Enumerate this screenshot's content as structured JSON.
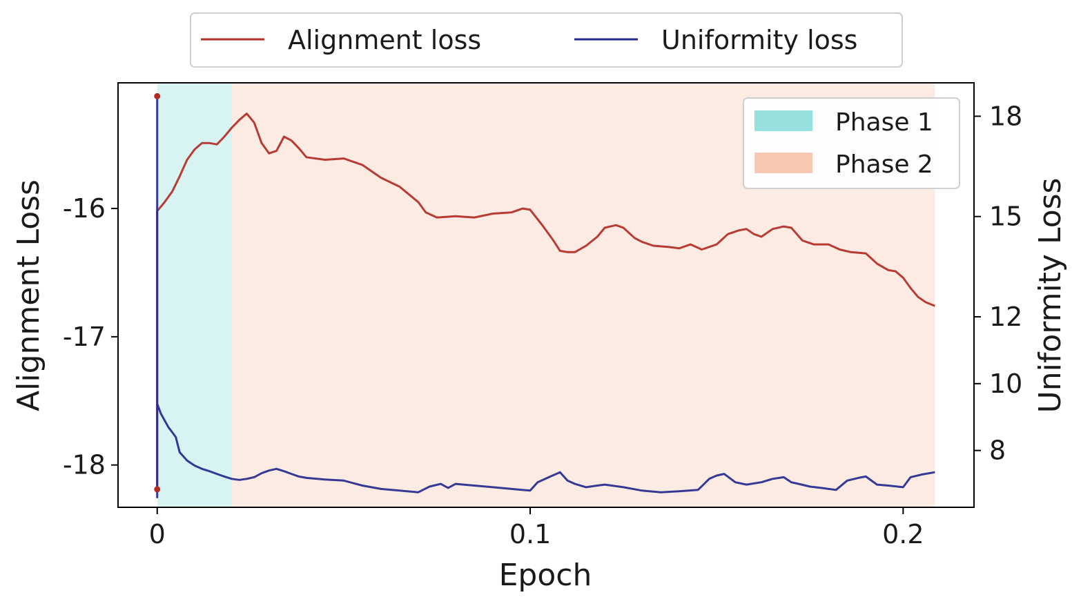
{
  "chart_data": {
    "type": "line",
    "xlabel": "Epoch",
    "ylabel_left": "Alignment Loss",
    "ylabel_right": "Uniformity Loss",
    "xlim": [
      -0.0105,
      0.219
    ],
    "ylim_left": [
      -18.33,
      -15.02
    ],
    "ylim_right": [
      6.3,
      19.0
    ],
    "x_ticks": [
      0,
      0.1,
      0.2
    ],
    "x_tick_labels": [
      "0",
      "0.1",
      "0.2"
    ],
    "left_ticks": [
      -16,
      -17,
      -18
    ],
    "left_tick_labels": [
      "-16",
      "-17",
      "-18"
    ],
    "right_ticks": [
      8,
      10,
      12,
      15,
      18
    ],
    "right_tick_labels": [
      "8",
      "10",
      "12",
      "15",
      "18"
    ],
    "phases": [
      {
        "name": "Phase 1",
        "x_start": 0,
        "x_end": 0.02,
        "color": "#96e0de"
      },
      {
        "name": "Phase 2",
        "x_start": 0.02,
        "x_end": 0.2085,
        "color": "#f7c8b2"
      }
    ],
    "series": [
      {
        "name": "Alignment loss",
        "axis": "left",
        "color": "#b22b24",
        "points": [
          [
            0,
            -18.19
          ],
          [
            0,
            -16.02
          ],
          [
            0.002,
            -15.95
          ],
          [
            0.004,
            -15.87
          ],
          [
            0.006,
            -15.75
          ],
          [
            0.008,
            -15.62
          ],
          [
            0.01,
            -15.54
          ],
          [
            0.012,
            -15.49
          ],
          [
            0.014,
            -15.49
          ],
          [
            0.016,
            -15.5
          ],
          [
            0.018,
            -15.44
          ],
          [
            0.02,
            -15.37
          ],
          [
            0.022,
            -15.31
          ],
          [
            0.024,
            -15.26
          ],
          [
            0.026,
            -15.33
          ],
          [
            0.028,
            -15.49
          ],
          [
            0.03,
            -15.57
          ],
          [
            0.032,
            -15.55
          ],
          [
            0.034,
            -15.44
          ],
          [
            0.036,
            -15.47
          ],
          [
            0.038,
            -15.53
          ],
          [
            0.04,
            -15.6
          ],
          [
            0.045,
            -15.62
          ],
          [
            0.05,
            -15.61
          ],
          [
            0.055,
            -15.66
          ],
          [
            0.06,
            -15.76
          ],
          [
            0.065,
            -15.83
          ],
          [
            0.07,
            -15.95
          ],
          [
            0.072,
            -16.03
          ],
          [
            0.075,
            -16.07
          ],
          [
            0.08,
            -16.06
          ],
          [
            0.085,
            -16.07
          ],
          [
            0.09,
            -16.04
          ],
          [
            0.095,
            -16.03
          ],
          [
            0.098,
            -16.0
          ],
          [
            0.1,
            -16.01
          ],
          [
            0.103,
            -16.12
          ],
          [
            0.106,
            -16.24
          ],
          [
            0.108,
            -16.33
          ],
          [
            0.11,
            -16.34
          ],
          [
            0.112,
            -16.34
          ],
          [
            0.115,
            -16.29
          ],
          [
            0.118,
            -16.22
          ],
          [
            0.12,
            -16.15
          ],
          [
            0.123,
            -16.13
          ],
          [
            0.125,
            -16.15
          ],
          [
            0.128,
            -16.23
          ],
          [
            0.13,
            -16.26
          ],
          [
            0.133,
            -16.29
          ],
          [
            0.137,
            -16.3
          ],
          [
            0.14,
            -16.31
          ],
          [
            0.143,
            -16.28
          ],
          [
            0.146,
            -16.32
          ],
          [
            0.15,
            -16.28
          ],
          [
            0.153,
            -16.2
          ],
          [
            0.156,
            -16.17
          ],
          [
            0.158,
            -16.16
          ],
          [
            0.16,
            -16.2
          ],
          [
            0.162,
            -16.22
          ],
          [
            0.165,
            -16.16
          ],
          [
            0.168,
            -16.14
          ],
          [
            0.17,
            -16.15
          ],
          [
            0.173,
            -16.25
          ],
          [
            0.176,
            -16.28
          ],
          [
            0.18,
            -16.28
          ],
          [
            0.183,
            -16.32
          ],
          [
            0.186,
            -16.34
          ],
          [
            0.19,
            -16.35
          ],
          [
            0.193,
            -16.43
          ],
          [
            0.196,
            -16.48
          ],
          [
            0.198,
            -16.49
          ],
          [
            0.2,
            -16.54
          ],
          [
            0.202,
            -16.62
          ],
          [
            0.204,
            -16.69
          ],
          [
            0.206,
            -16.73
          ],
          [
            0.2085,
            -16.76
          ]
        ]
      },
      {
        "name": "Uniformity loss",
        "axis": "right",
        "color": "#23298f",
        "points": [
          [
            0,
            18.6
          ],
          [
            0,
            6.6
          ],
          [
            0,
            9.4
          ],
          [
            0.001,
            9.1
          ],
          [
            0.002,
            8.9
          ],
          [
            0.003,
            8.7
          ],
          [
            0.004,
            8.55
          ],
          [
            0.005,
            8.4
          ],
          [
            0.006,
            7.95
          ],
          [
            0.008,
            7.7
          ],
          [
            0.01,
            7.55
          ],
          [
            0.012,
            7.45
          ],
          [
            0.014,
            7.38
          ],
          [
            0.016,
            7.3
          ],
          [
            0.018,
            7.22
          ],
          [
            0.02,
            7.15
          ],
          [
            0.022,
            7.12
          ],
          [
            0.024,
            7.15
          ],
          [
            0.026,
            7.2
          ],
          [
            0.028,
            7.32
          ],
          [
            0.03,
            7.4
          ],
          [
            0.032,
            7.45
          ],
          [
            0.034,
            7.38
          ],
          [
            0.036,
            7.3
          ],
          [
            0.038,
            7.22
          ],
          [
            0.04,
            7.18
          ],
          [
            0.045,
            7.13
          ],
          [
            0.05,
            7.1
          ],
          [
            0.055,
            6.95
          ],
          [
            0.06,
            6.85
          ],
          [
            0.065,
            6.8
          ],
          [
            0.07,
            6.75
          ],
          [
            0.073,
            6.92
          ],
          [
            0.076,
            7.0
          ],
          [
            0.078,
            6.88
          ],
          [
            0.08,
            7.0
          ],
          [
            0.085,
            6.95
          ],
          [
            0.09,
            6.9
          ],
          [
            0.095,
            6.85
          ],
          [
            0.1,
            6.8
          ],
          [
            0.102,
            7.05
          ],
          [
            0.105,
            7.2
          ],
          [
            0.108,
            7.35
          ],
          [
            0.11,
            7.1
          ],
          [
            0.112,
            7.0
          ],
          [
            0.115,
            6.9
          ],
          [
            0.118,
            6.95
          ],
          [
            0.12,
            6.98
          ],
          [
            0.125,
            6.9
          ],
          [
            0.13,
            6.8
          ],
          [
            0.135,
            6.75
          ],
          [
            0.14,
            6.78
          ],
          [
            0.145,
            6.82
          ],
          [
            0.148,
            7.15
          ],
          [
            0.15,
            7.25
          ],
          [
            0.152,
            7.3
          ],
          [
            0.155,
            7.05
          ],
          [
            0.158,
            6.98
          ],
          [
            0.162,
            7.05
          ],
          [
            0.165,
            7.15
          ],
          [
            0.168,
            7.2
          ],
          [
            0.17,
            7.05
          ],
          [
            0.172,
            7.0
          ],
          [
            0.175,
            6.92
          ],
          [
            0.178,
            6.88
          ],
          [
            0.182,
            6.82
          ],
          [
            0.185,
            7.1
          ],
          [
            0.188,
            7.18
          ],
          [
            0.19,
            7.22
          ],
          [
            0.193,
            6.98
          ],
          [
            0.196,
            6.95
          ],
          [
            0.2,
            6.9
          ],
          [
            0.202,
            7.2
          ],
          [
            0.205,
            7.28
          ],
          [
            0.2085,
            7.35
          ]
        ]
      }
    ],
    "legend_top": [
      "Alignment loss",
      "Uniformity loss"
    ],
    "legend_inner": [
      "Phase 1",
      "Phase 2"
    ],
    "legend_inner_placement": "top-right",
    "grid": false
  }
}
